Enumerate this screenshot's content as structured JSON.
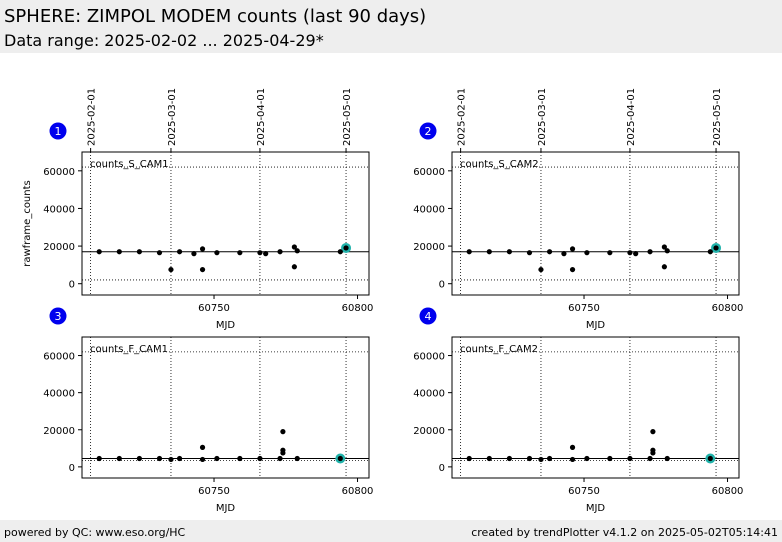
{
  "header": {
    "title": "SPHERE: ZIMPOL MODEM counts (last 90 days)",
    "subtitle": "Data range: 2025-02-02 ... 2025-04-29*"
  },
  "footer": {
    "left": "powered by QC: www.eso.org/HC",
    "right": "created by trendPlotter v4.1.2 on 2025-05-02T05:14:41"
  },
  "colors": {
    "marker": "#000000",
    "latest_highlight": "#20b2aa",
    "badge": "#0000ee",
    "header_bg": "#eeeeee"
  },
  "chart_data": [
    {
      "type": "scatter",
      "panel_number": "1",
      "series_label": "counts_S_CAM1",
      "xlabel": "MJD",
      "ylabel": "rawframe_counts",
      "xlim": [
        60704,
        60804
      ],
      "ylim": [
        -6000,
        70000
      ],
      "xticks": [
        60750,
        60800
      ],
      "yticks": [
        0,
        20000,
        40000,
        60000
      ],
      "top_axis_dates": [
        "2025-02-01",
        "2025-03-01",
        "2025-04-01",
        "2025-05-01"
      ],
      "top_axis_mjd": [
        60707,
        60735,
        60766,
        60796
      ],
      "hlines": [
        17000,
        62000,
        2000
      ],
      "points": [
        [
          60710,
          17000
        ],
        [
          60717,
          17000
        ],
        [
          60724,
          17000
        ],
        [
          60731,
          16500
        ],
        [
          60735,
          7500
        ],
        [
          60738,
          17000
        ],
        [
          60743,
          16000
        ],
        [
          60746,
          18500
        ],
        [
          60746,
          7500
        ],
        [
          60751,
          16500
        ],
        [
          60759,
          16500
        ],
        [
          60766,
          16500
        ],
        [
          60768,
          16000
        ],
        [
          60773,
          17000
        ],
        [
          60778,
          19500
        ],
        [
          60778,
          9000
        ],
        [
          60779,
          17500
        ],
        [
          60794,
          17000
        ],
        [
          60796,
          19000
        ]
      ],
      "latest": [
        60796,
        19000
      ],
      "grid": "dotted"
    },
    {
      "type": "scatter",
      "panel_number": "2",
      "series_label": "counts_S_CAM2",
      "xlabel": "MJD",
      "ylabel": "",
      "xlim": [
        60704,
        60804
      ],
      "ylim": [
        -6000,
        70000
      ],
      "xticks": [
        60750,
        60800
      ],
      "yticks": [
        0,
        20000,
        40000,
        60000
      ],
      "top_axis_dates": [
        "2025-02-01",
        "2025-03-01",
        "2025-04-01",
        "2025-05-01"
      ],
      "top_axis_mjd": [
        60707,
        60735,
        60766,
        60796
      ],
      "hlines": [
        17000,
        62000,
        2000
      ],
      "points": [
        [
          60710,
          17000
        ],
        [
          60717,
          17000
        ],
        [
          60724,
          17000
        ],
        [
          60731,
          16500
        ],
        [
          60735,
          7500
        ],
        [
          60738,
          17000
        ],
        [
          60743,
          16000
        ],
        [
          60746,
          18500
        ],
        [
          60746,
          7500
        ],
        [
          60751,
          16500
        ],
        [
          60759,
          16500
        ],
        [
          60766,
          16500
        ],
        [
          60768,
          16000
        ],
        [
          60773,
          17000
        ],
        [
          60778,
          19500
        ],
        [
          60778,
          9000
        ],
        [
          60779,
          17500
        ],
        [
          60794,
          17000
        ],
        [
          60796,
          19000
        ]
      ],
      "latest": [
        60796,
        19000
      ],
      "grid": "dotted"
    },
    {
      "type": "scatter",
      "panel_number": "3",
      "series_label": "counts_F_CAM1",
      "xlabel": "MJD",
      "ylabel": "",
      "xlim": [
        60704,
        60804
      ],
      "ylim": [
        -6000,
        70000
      ],
      "xticks": [
        60750,
        60800
      ],
      "yticks": [
        0,
        20000,
        40000,
        60000
      ],
      "top_axis_dates": [],
      "top_axis_mjd": [
        60707,
        60735,
        60766,
        60796
      ],
      "hlines": [
        4500,
        62000,
        3500
      ],
      "points": [
        [
          60710,
          4500
        ],
        [
          60717,
          4500
        ],
        [
          60724,
          4500
        ],
        [
          60731,
          4500
        ],
        [
          60735,
          4000
        ],
        [
          60738,
          4500
        ],
        [
          60746,
          4000
        ],
        [
          60746,
          10500
        ],
        [
          60751,
          4500
        ],
        [
          60759,
          4500
        ],
        [
          60766,
          4500
        ],
        [
          60773,
          4500
        ],
        [
          60774,
          7500
        ],
        [
          60774,
          9000
        ],
        [
          60774,
          19000
        ],
        [
          60779,
          4500
        ],
        [
          60794,
          4500
        ]
      ],
      "latest": [
        60794,
        4500
      ],
      "grid": "dotted"
    },
    {
      "type": "scatter",
      "panel_number": "4",
      "series_label": "counts_F_CAM2",
      "xlabel": "MJD",
      "ylabel": "",
      "xlim": [
        60704,
        60804
      ],
      "ylim": [
        -6000,
        70000
      ],
      "xticks": [
        60750,
        60800
      ],
      "yticks": [
        0,
        20000,
        40000,
        60000
      ],
      "top_axis_dates": [],
      "top_axis_mjd": [
        60707,
        60735,
        60766,
        60796
      ],
      "hlines": [
        4500,
        62000,
        3500
      ],
      "points": [
        [
          60710,
          4500
        ],
        [
          60717,
          4500
        ],
        [
          60724,
          4500
        ],
        [
          60731,
          4500
        ],
        [
          60735,
          4000
        ],
        [
          60738,
          4500
        ],
        [
          60746,
          4000
        ],
        [
          60746,
          10500
        ],
        [
          60751,
          4500
        ],
        [
          60759,
          4500
        ],
        [
          60766,
          4500
        ],
        [
          60773,
          4500
        ],
        [
          60774,
          7500
        ],
        [
          60774,
          9000
        ],
        [
          60774,
          19000
        ],
        [
          60779,
          4500
        ],
        [
          60794,
          4500
        ]
      ],
      "latest": [
        60794,
        4500
      ],
      "grid": "dotted"
    }
  ]
}
